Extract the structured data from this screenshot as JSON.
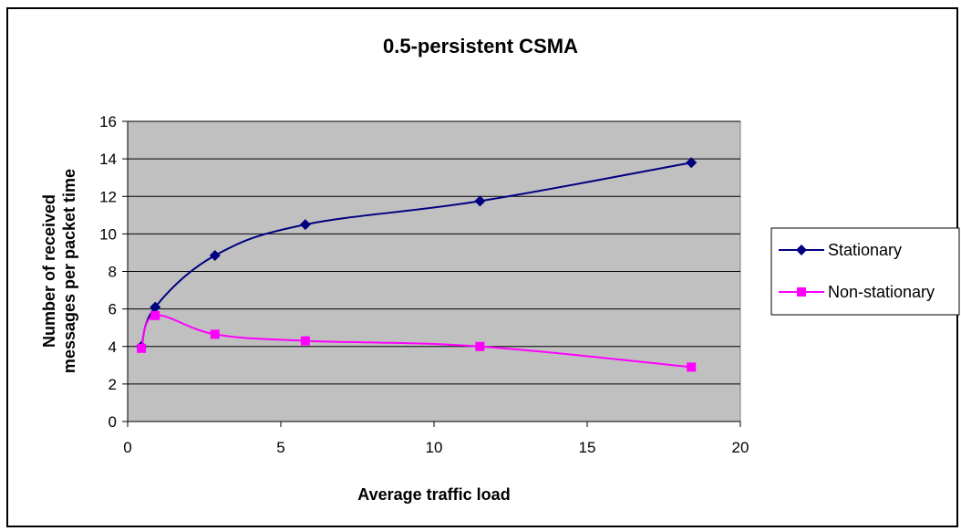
{
  "chart_data": {
    "type": "line",
    "title": "0.5-persistent CSMA",
    "xlabel": "Average traffic load",
    "ylabel_lines": [
      "Number of received",
      "messages per packet time"
    ],
    "xlim": [
      0,
      20
    ],
    "ylim": [
      0,
      16
    ],
    "xticks": [
      "0",
      "5",
      "10",
      "15",
      "20"
    ],
    "yticks": [
      "0",
      "2",
      "4",
      "6",
      "8",
      "10",
      "12",
      "14",
      "16"
    ],
    "grid": true,
    "plot_background": "#c0c0c0",
    "legend_position": "right",
    "series": [
      {
        "name": "Stationary",
        "color": "#000080",
        "marker": "diamond",
        "x": [
          0.45,
          0.9,
          2.85,
          5.8,
          11.5,
          18.4
        ],
        "y": [
          4.0,
          6.1,
          8.85,
          10.5,
          11.75,
          13.8
        ]
      },
      {
        "name": "Non-stationary",
        "color": "#ff00ff",
        "marker": "square",
        "x": [
          0.45,
          0.9,
          2.85,
          5.8,
          11.5,
          18.4
        ],
        "y": [
          3.9,
          5.65,
          4.65,
          4.3,
          4.0,
          2.9
        ]
      }
    ]
  }
}
